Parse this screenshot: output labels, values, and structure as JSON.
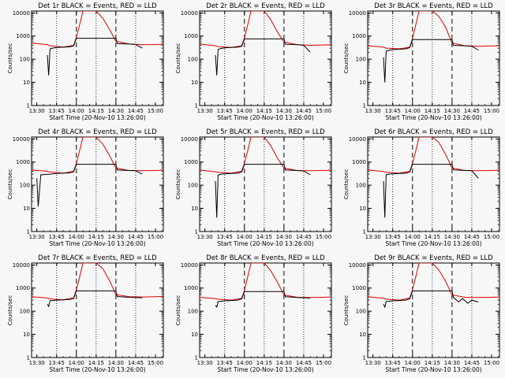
{
  "chart_data": [
    {
      "type": "line",
      "title": "Det 1r BLACK = Events, RED = LLD",
      "xlabel": "Start Time (20-Nov-10 13:26:00)",
      "ylabel": "Counts/sec",
      "xlim": [
        "13:26",
        "15:06"
      ],
      "ylim": [
        1,
        12000
      ],
      "yscale": "log",
      "grid": false,
      "xticks": [
        "13:30",
        "13:45",
        "14:00",
        "14:15",
        "14:30",
        "14:45",
        "15:00"
      ],
      "yticks": [
        "1",
        "10",
        "100",
        "1000",
        "10000"
      ],
      "dashed_markers": [
        "14:00",
        "14:30"
      ],
      "dotted_markers": [
        "13:45",
        "14:15",
        "14:45"
      ],
      "series": [
        {
          "color": "#e00000",
          "x": [
            "13:26",
            "13:38",
            "13:40",
            "13:50",
            "13:58",
            "14:00",
            "14:03",
            "14:05",
            "14:15",
            "14:20",
            "14:25",
            "14:30",
            "14:40",
            "14:50",
            "15:00",
            "15:06"
          ],
          "y": [
            500,
            420,
            380,
            330,
            400,
            900,
            4000,
            12000,
            12000,
            6000,
            2000,
            600,
            450,
            420,
            430,
            440
          ]
        },
        {
          "color": "#000000",
          "x": [
            "13:38",
            "13:39",
            "13:40",
            "13:42",
            "13:45",
            "13:50",
            "13:55",
            "13:58",
            "14:00",
            "14:30",
            "14:31",
            "14:40",
            "14:45",
            "14:50"
          ],
          "y": [
            150,
            20,
            280,
            300,
            320,
            330,
            340,
            380,
            800,
            800,
            470,
            450,
            430,
            300
          ]
        }
      ]
    },
    {
      "type": "line",
      "title": "Det 2r BLACK = Events, RED = LLD",
      "xlabel": "Start Time (20-Nov-10 13:26:00)",
      "ylabel": "Counts/sec",
      "xlim": [
        "13:26",
        "15:06"
      ],
      "ylim": [
        1,
        12000
      ],
      "yscale": "log",
      "grid": false,
      "xticks": [
        "13:30",
        "13:45",
        "14:00",
        "14:15",
        "14:30",
        "14:45",
        "15:00"
      ],
      "yticks": [
        "1",
        "10",
        "100",
        "1000",
        "10000"
      ],
      "dashed_markers": [
        "14:00",
        "14:30"
      ],
      "dotted_markers": [
        "13:45",
        "14:15",
        "14:45"
      ],
      "series": [
        {
          "color": "#e00000",
          "x": [
            "13:26",
            "13:38",
            "13:40",
            "13:50",
            "13:58",
            "14:00",
            "14:03",
            "14:05",
            "14:15",
            "14:20",
            "14:25",
            "14:30",
            "14:40",
            "14:50",
            "15:00",
            "15:06"
          ],
          "y": [
            450,
            380,
            350,
            320,
            380,
            850,
            4000,
            12000,
            12000,
            5000,
            1500,
            550,
            420,
            400,
            410,
            420
          ]
        },
        {
          "color": "#000000",
          "x": [
            "13:38",
            "13:39",
            "13:40",
            "13:42",
            "13:45",
            "13:50",
            "13:55",
            "13:58",
            "14:00",
            "14:30",
            "14:31",
            "14:40",
            "14:45",
            "14:50"
          ],
          "y": [
            150,
            20,
            260,
            290,
            310,
            320,
            330,
            360,
            750,
            750,
            440,
            420,
            400,
            200
          ]
        }
      ]
    },
    {
      "type": "line",
      "title": "Det 3r BLACK = Events, RED = LLD",
      "xlabel": "Start Time (20-Nov-10 13:26:00)",
      "ylabel": "Counts/sec",
      "xlim": [
        "13:26",
        "15:06"
      ],
      "ylim": [
        1,
        12000
      ],
      "yscale": "log",
      "grid": false,
      "xticks": [
        "13:30",
        "13:45",
        "14:00",
        "14:15",
        "14:30",
        "14:45",
        "15:00"
      ],
      "yticks": [
        "1",
        "10",
        "100",
        "1000",
        "10000"
      ],
      "dashed_markers": [
        "14:00",
        "14:30"
      ],
      "dotted_markers": [
        "13:45",
        "14:15",
        "14:45"
      ],
      "series": [
        {
          "color": "#e00000",
          "x": [
            "13:26",
            "13:38",
            "13:40",
            "13:50",
            "13:58",
            "14:00",
            "14:03",
            "14:05",
            "14:15",
            "14:20",
            "14:25",
            "14:30",
            "14:40",
            "14:50",
            "15:00",
            "15:06"
          ],
          "y": [
            380,
            330,
            300,
            280,
            330,
            800,
            4000,
            12000,
            12000,
            7000,
            2500,
            500,
            380,
            360,
            370,
            380
          ]
        },
        {
          "color": "#000000",
          "x": [
            "13:38",
            "13:39",
            "13:40",
            "13:42",
            "13:45",
            "13:50",
            "13:55",
            "13:58",
            "14:00",
            "14:30",
            "14:31",
            "14:40",
            "14:45",
            "14:50"
          ],
          "y": [
            120,
            10,
            220,
            240,
            260,
            270,
            280,
            320,
            700,
            700,
            400,
            380,
            360,
            250
          ]
        }
      ]
    },
    {
      "type": "line",
      "title": "Det 4r BLACK = Events, RED = LLD",
      "xlabel": "Start Time (20-Nov-10 13:26:00)",
      "ylabel": "Counts/sec",
      "xlim": [
        "13:26",
        "15:06"
      ],
      "ylim": [
        1,
        12000
      ],
      "yscale": "log",
      "grid": false,
      "xticks": [
        "13:30",
        "13:45",
        "14:00",
        "14:15",
        "14:30",
        "14:45",
        "15:00"
      ],
      "yticks": [
        "1",
        "10",
        "100",
        "1000",
        "10000"
      ],
      "dashed_markers": [
        "14:00",
        "14:30"
      ],
      "dotted_markers": [
        "13:45",
        "14:15",
        "14:45"
      ],
      "series": [
        {
          "color": "#e00000",
          "x": [
            "13:26",
            "13:38",
            "13:40",
            "13:50",
            "13:58",
            "14:00",
            "14:03",
            "14:05",
            "14:15",
            "14:20",
            "14:25",
            "14:30",
            "14:40",
            "14:50",
            "15:00",
            "15:06"
          ],
          "y": [
            450,
            400,
            370,
            330,
            400,
            900,
            4000,
            12000,
            12000,
            6000,
            2000,
            550,
            430,
            420,
            430,
            440
          ]
        },
        {
          "color": "#000000",
          "x": [
            "13:30",
            "13:31",
            "13:33",
            "13:40",
            "13:45",
            "13:50",
            "13:55",
            "13:58",
            "14:00",
            "14:30",
            "14:31",
            "14:40",
            "14:45",
            "14:50"
          ],
          "y": [
            200,
            12,
            280,
            300,
            320,
            330,
            340,
            380,
            800,
            800,
            450,
            430,
            420,
            300
          ]
        }
      ]
    },
    {
      "type": "line",
      "title": "Det 5r BLACK = Events, RED = LLD",
      "xlabel": "Start Time (20-Nov-10 13:26:00)",
      "ylabel": "Counts/sec",
      "xlim": [
        "13:26",
        "15:06"
      ],
      "ylim": [
        1,
        12000
      ],
      "yscale": "log",
      "grid": false,
      "xticks": [
        "13:30",
        "13:45",
        "14:00",
        "14:15",
        "14:30",
        "14:45",
        "15:00"
      ],
      "yticks": [
        "1",
        "10",
        "100",
        "1000",
        "10000"
      ],
      "dashed_markers": [
        "14:00",
        "14:30"
      ],
      "dotted_markers": [
        "13:45",
        "14:15",
        "14:45"
      ],
      "series": [
        {
          "color": "#e00000",
          "x": [
            "13:26",
            "13:38",
            "13:40",
            "13:50",
            "13:58",
            "14:00",
            "14:03",
            "14:05",
            "14:15",
            "14:20",
            "14:25",
            "14:30",
            "14:40",
            "14:50",
            "15:00",
            "15:06"
          ],
          "y": [
            450,
            380,
            360,
            330,
            400,
            900,
            4000,
            12000,
            12000,
            5000,
            1500,
            550,
            430,
            420,
            430,
            440
          ]
        },
        {
          "color": "#000000",
          "x": [
            "13:38",
            "13:39",
            "13:40",
            "13:42",
            "13:45",
            "13:50",
            "13:55",
            "13:58",
            "14:00",
            "14:30",
            "14:31",
            "14:40",
            "14:45",
            "14:50"
          ],
          "y": [
            150,
            4,
            270,
            300,
            310,
            320,
            330,
            370,
            800,
            800,
            450,
            430,
            410,
            280
          ]
        }
      ]
    },
    {
      "type": "line",
      "title": "Det 6r BLACK = Events, RED = LLD",
      "xlabel": "Start Time (20-Nov-10 13:26:00)",
      "ylabel": "Counts/sec",
      "xlim": [
        "13:26",
        "15:06"
      ],
      "ylim": [
        1,
        12000
      ],
      "yscale": "log",
      "grid": false,
      "xticks": [
        "13:30",
        "13:45",
        "14:00",
        "14:15",
        "14:30",
        "14:45",
        "15:00"
      ],
      "yticks": [
        "1",
        "10",
        "100",
        "1000",
        "10000"
      ],
      "dashed_markers": [
        "14:00",
        "14:30"
      ],
      "dotted_markers": [
        "13:45",
        "14:15",
        "14:45"
      ],
      "series": [
        {
          "color": "#e00000",
          "x": [
            "13:26",
            "13:38",
            "13:40",
            "13:50",
            "13:58",
            "14:00",
            "14:03",
            "14:05",
            "14:15",
            "14:20",
            "14:25",
            "14:30",
            "14:40",
            "14:50",
            "15:00",
            "15:06"
          ],
          "y": [
            450,
            390,
            360,
            330,
            400,
            900,
            4000,
            12000,
            12000,
            7000,
            2200,
            550,
            430,
            420,
            430,
            440
          ]
        },
        {
          "color": "#000000",
          "x": [
            "13:38",
            "13:39",
            "13:40",
            "13:42",
            "13:45",
            "13:50",
            "13:55",
            "13:58",
            "14:00",
            "14:30",
            "14:31",
            "14:40",
            "14:45",
            "14:50"
          ],
          "y": [
            150,
            4,
            280,
            300,
            310,
            320,
            330,
            370,
            800,
            800,
            460,
            430,
            420,
            200
          ]
        }
      ]
    },
    {
      "type": "line",
      "title": "Det 7r BLACK = Events, RED = LLD",
      "xlabel": "Start Time (20-Nov-10 13:26:00)",
      "ylabel": "Counts/sec",
      "xlim": [
        "13:26",
        "15:06"
      ],
      "ylim": [
        1,
        12000
      ],
      "yscale": "log",
      "grid": false,
      "xticks": [
        "13:30",
        "13:45",
        "14:00",
        "14:15",
        "14:30",
        "14:45",
        "15:00"
      ],
      "yticks": [
        "1",
        "10",
        "100",
        "1000",
        "10000"
      ],
      "dashed_markers": [
        "14:00",
        "14:30"
      ],
      "dotted_markers": [
        "13:45",
        "14:15",
        "14:45"
      ],
      "series": [
        {
          "color": "#e00000",
          "x": [
            "13:26",
            "13:38",
            "13:40",
            "13:50",
            "13:58",
            "14:00",
            "14:03",
            "14:05",
            "14:15",
            "14:20",
            "14:25",
            "14:30",
            "14:40",
            "14:50",
            "15:00",
            "15:06"
          ],
          "y": [
            420,
            370,
            340,
            310,
            380,
            850,
            4000,
            12000,
            12000,
            7000,
            2200,
            520,
            420,
            410,
            420,
            430
          ]
        },
        {
          "color": "#000000",
          "x": [
            "13:38",
            "13:39",
            "13:40",
            "13:45",
            "13:50",
            "13:55",
            "13:58",
            "14:00",
            "14:30",
            "14:31",
            "14:40",
            "14:45",
            "14:50"
          ],
          "y": [
            200,
            160,
            280,
            300,
            310,
            320,
            360,
            750,
            750,
            430,
            400,
            390,
            380
          ]
        }
      ]
    },
    {
      "type": "line",
      "title": "Det 8r BLACK = Events, RED = LLD",
      "xlabel": "Start Time (20-Nov-10 13:26:00)",
      "ylabel": "Counts/sec",
      "xlim": [
        "13:26",
        "15:06"
      ],
      "ylim": [
        1,
        12000
      ],
      "yscale": "log",
      "grid": false,
      "xticks": [
        "13:30",
        "13:45",
        "14:00",
        "14:15",
        "14:30",
        "14:45",
        "15:00"
      ],
      "yticks": [
        "1",
        "10",
        "100",
        "1000",
        "10000"
      ],
      "dashed_markers": [
        "14:00",
        "14:30"
      ],
      "dotted_markers": [
        "13:45",
        "14:15",
        "14:45"
      ],
      "series": [
        {
          "color": "#e00000",
          "x": [
            "13:26",
            "13:38",
            "13:40",
            "13:50",
            "13:58",
            "14:00",
            "14:03",
            "14:05",
            "14:15",
            "14:20",
            "14:25",
            "14:30",
            "14:40",
            "14:50",
            "15:00",
            "15:06"
          ],
          "y": [
            400,
            350,
            330,
            300,
            360,
            800,
            4000,
            12000,
            12000,
            5500,
            1800,
            500,
            400,
            390,
            400,
            410
          ]
        },
        {
          "color": "#000000",
          "x": [
            "13:38",
            "13:39",
            "13:40",
            "13:45",
            "13:50",
            "13:55",
            "13:58",
            "14:00",
            "14:30",
            "14:31",
            "14:40",
            "14:45",
            "14:50"
          ],
          "y": [
            180,
            150,
            260,
            280,
            290,
            300,
            340,
            700,
            700,
            420,
            390,
            380,
            370
          ]
        }
      ]
    },
    {
      "type": "line",
      "title": "Det 9r BLACK = Events, RED = LLD",
      "xlabel": "Start Time (20-Nov-10 13:26:00)",
      "ylabel": "Counts/sec",
      "xlim": [
        "13:26",
        "15:06"
      ],
      "ylim": [
        1,
        12000
      ],
      "yscale": "log",
      "grid": false,
      "xticks": [
        "13:30",
        "13:45",
        "14:00",
        "14:15",
        "14:30",
        "14:45",
        "15:00"
      ],
      "yticks": [
        "1",
        "10",
        "100",
        "1000",
        "10000"
      ],
      "dashed_markers": [
        "14:00",
        "14:30"
      ],
      "dotted_markers": [
        "13:45",
        "14:15",
        "14:45"
      ],
      "series": [
        {
          "color": "#e00000",
          "x": [
            "13:26",
            "13:38",
            "13:40",
            "13:50",
            "13:58",
            "14:00",
            "14:03",
            "14:05",
            "14:15",
            "14:20",
            "14:25",
            "14:30",
            "14:40",
            "14:50",
            "15:00",
            "15:06"
          ],
          "y": [
            420,
            360,
            330,
            300,
            370,
            850,
            4000,
            12000,
            12000,
            6000,
            2000,
            500,
            400,
            390,
            400,
            410
          ]
        },
        {
          "color": "#000000",
          "x": [
            "13:38",
            "13:39",
            "13:40",
            "13:45",
            "13:50",
            "13:55",
            "13:58",
            "14:00",
            "14:30",
            "14:31",
            "14:35",
            "14:38",
            "14:42",
            "14:45",
            "14:50"
          ],
          "y": [
            200,
            150,
            260,
            280,
            290,
            300,
            350,
            750,
            750,
            400,
            250,
            350,
            220,
            300,
            250
          ]
        }
      ]
    }
  ]
}
